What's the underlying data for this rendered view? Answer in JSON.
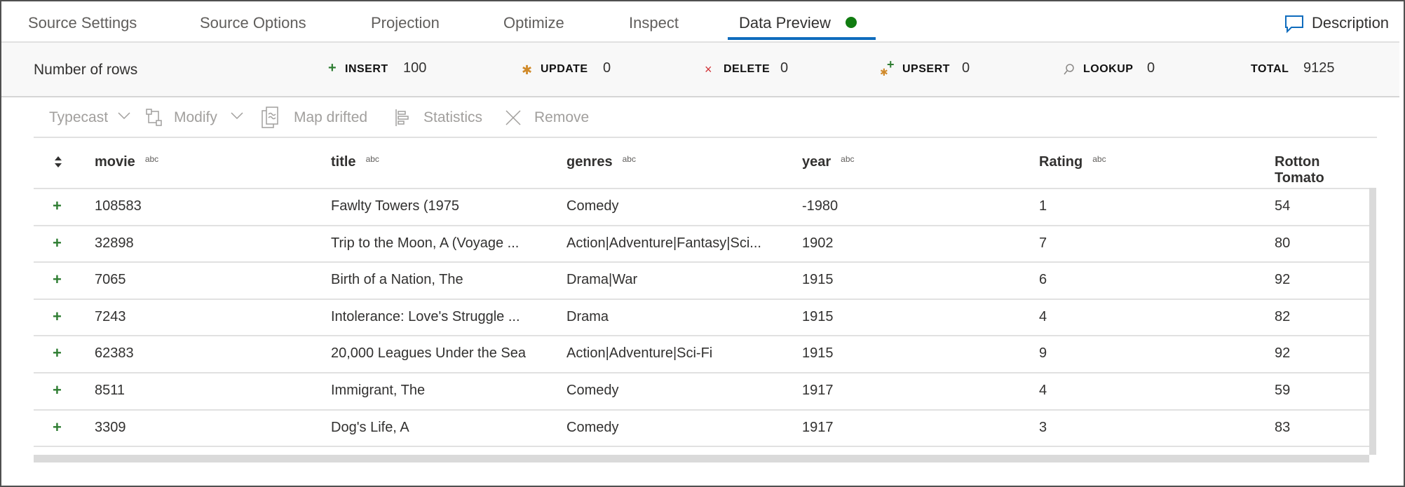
{
  "tabs": [
    {
      "label": "Source Settings"
    },
    {
      "label": "Source Options"
    },
    {
      "label": "Projection"
    },
    {
      "label": "Optimize"
    },
    {
      "label": "Inspect"
    },
    {
      "label": "Data Preview",
      "active": true,
      "status_color": "#107c10"
    }
  ],
  "description_label": "Description",
  "stats": {
    "title": "Number of rows",
    "insert": {
      "label": "INSERT",
      "value": "100"
    },
    "update": {
      "label": "UPDATE",
      "value": "0"
    },
    "delete": {
      "label": "DELETE",
      "value": "0"
    },
    "upsert": {
      "label": "UPSERT",
      "value": "0"
    },
    "lookup": {
      "label": "LOOKUP",
      "value": "0"
    },
    "total": {
      "label": "TOTAL",
      "value": "9125"
    }
  },
  "toolbar": {
    "typecast": "Typecast",
    "modify": "Modify",
    "map_drifted": "Map drifted",
    "statistics": "Statistics",
    "remove": "Remove"
  },
  "table": {
    "type_badge": "abc",
    "columns": [
      "movie",
      "title",
      "genres",
      "year",
      "Rating",
      "Rotton Tomato"
    ],
    "rows": [
      [
        "108583",
        "Fawlty Towers (1975",
        "Comedy",
        "-1980",
        "1",
        "54"
      ],
      [
        "32898",
        "Trip to the Moon, A (Voyage ...",
        "Action|Adventure|Fantasy|Sci...",
        "1902",
        "7",
        "80"
      ],
      [
        "7065",
        "Birth of a Nation, The",
        "Drama|War",
        "1915",
        "6",
        "92"
      ],
      [
        "7243",
        "Intolerance: Love's Struggle ...",
        "Drama",
        "1915",
        "4",
        "82"
      ],
      [
        "62383",
        "20,000 Leagues Under the Sea",
        "Action|Adventure|Sci-Fi",
        "1915",
        "9",
        "92"
      ],
      [
        "8511",
        "Immigrant, The",
        "Comedy",
        "1917",
        "4",
        "59"
      ],
      [
        "3309",
        "Dog's Life, A",
        "Comedy",
        "1917",
        "3",
        "83"
      ]
    ]
  }
}
